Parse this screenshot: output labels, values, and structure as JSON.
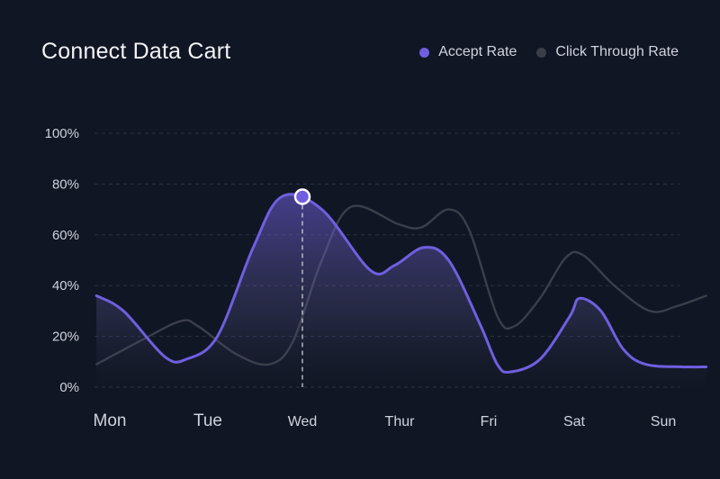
{
  "title": "Connect  Data Cart",
  "legend": [
    {
      "label": "Accept Rate",
      "color": "#6f5fe0"
    },
    {
      "label": "Click Through Rate",
      "color": "#3a3e48"
    }
  ],
  "chart_data": {
    "type": "line",
    "title": "Connect  Data Cart",
    "categories": [
      "Mon",
      "Tue",
      "Wed",
      "Thur",
      "Fri",
      "Sat",
      "Sun"
    ],
    "ytick_labels": [
      "100%",
      "80%",
      "60%",
      "40%",
      "20%",
      "0%"
    ],
    "ylim": [
      0,
      100
    ],
    "grid": true,
    "legend_position": "top-right",
    "highlight": {
      "category": "Wed",
      "series": "Accept Rate",
      "value": 75
    },
    "series": [
      {
        "name": "Accept Rate",
        "color": "#6f5fe0",
        "area": true,
        "points": [
          [
            -0.14,
            36
          ],
          [
            0.14,
            30
          ],
          [
            0.56,
            12
          ],
          [
            0.78,
            11
          ],
          [
            1.1,
            20
          ],
          [
            1.48,
            55
          ],
          [
            1.78,
            75
          ],
          [
            2.2,
            70
          ],
          [
            2.7,
            46
          ],
          [
            2.95,
            48
          ],
          [
            3.27,
            55
          ],
          [
            3.55,
            50
          ],
          [
            3.9,
            25
          ],
          [
            4.1,
            9
          ],
          [
            4.25,
            6
          ],
          [
            4.6,
            11
          ],
          [
            4.95,
            28
          ],
          [
            5.06,
            35
          ],
          [
            5.3,
            30
          ],
          [
            5.55,
            15
          ],
          [
            5.8,
            9
          ],
          [
            6.2,
            8
          ],
          [
            6.45,
            8
          ]
        ]
      },
      {
        "name": "Click Through Rate",
        "color": "#3b3f4a",
        "area": false,
        "points": [
          [
            -0.14,
            9
          ],
          [
            0.3,
            18
          ],
          [
            0.72,
            26
          ],
          [
            0.9,
            24
          ],
          [
            1.3,
            13
          ],
          [
            1.65,
            9
          ],
          [
            1.9,
            18
          ],
          [
            2.2,
            50
          ],
          [
            2.5,
            71
          ],
          [
            3.0,
            64
          ],
          [
            3.25,
            63
          ],
          [
            3.55,
            70
          ],
          [
            3.78,
            62
          ],
          [
            4.1,
            28
          ],
          [
            4.3,
            24
          ],
          [
            4.6,
            35
          ],
          [
            4.9,
            51
          ],
          [
            5.1,
            52
          ],
          [
            5.45,
            40
          ],
          [
            5.85,
            30
          ],
          [
            6.15,
            32
          ],
          [
            6.45,
            36
          ]
        ]
      }
    ]
  }
}
